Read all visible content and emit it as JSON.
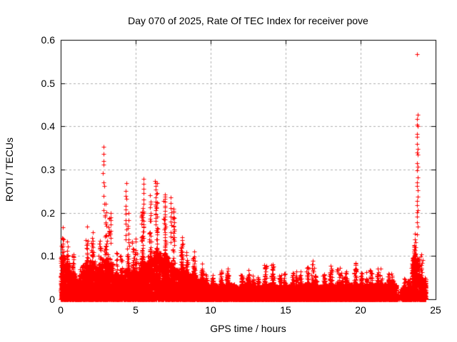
{
  "chart_data": {
    "type": "scatter",
    "title": "Day 070 of 2025, Rate Of TEC Index for receiver pove",
    "xlabel": "GPS time / hours",
    "ylabel": "ROTI / TECUs",
    "xlim": [
      0,
      25
    ],
    "ylim": [
      0,
      0.6
    ],
    "xticks": [
      0,
      5,
      10,
      15,
      20,
      25
    ],
    "yticks": [
      0,
      0.1,
      0.2,
      0.3,
      0.4,
      0.5,
      0.6
    ],
    "grid": true,
    "legend": "none",
    "marker": "plus",
    "colors": {
      "points": "#ff0000",
      "grid": "#b0b0b0",
      "border": "#000000",
      "text": "#000000",
      "background": "#ffffff"
    },
    "series_name": "ROTI",
    "data_time_range": [
      0,
      24.35
    ],
    "envelope_segments": [
      [
        0.0,
        0.3,
        0.1,
        0.17
      ],
      [
        0.3,
        0.6,
        0.085,
        0.135
      ],
      [
        0.6,
        1.0,
        0.06,
        0.11
      ],
      [
        1.0,
        1.4,
        0.045,
        0.075
      ],
      [
        1.4,
        1.9,
        0.08,
        0.17
      ],
      [
        1.9,
        2.3,
        0.09,
        0.165
      ],
      [
        2.3,
        2.7,
        0.075,
        0.145
      ],
      [
        2.7,
        3.1,
        0.095,
        0.23
      ],
      [
        3.1,
        3.5,
        0.085,
        0.2
      ],
      [
        3.5,
        4.2,
        0.055,
        0.115
      ],
      [
        4.2,
        4.6,
        0.07,
        0.2
      ],
      [
        4.6,
        5.2,
        0.065,
        0.15
      ],
      [
        5.2,
        5.8,
        0.085,
        0.22
      ],
      [
        5.8,
        6.2,
        0.1,
        0.25
      ],
      [
        6.2,
        6.7,
        0.11,
        0.27
      ],
      [
        6.7,
        7.2,
        0.1,
        0.24
      ],
      [
        7.2,
        7.6,
        0.085,
        0.22
      ],
      [
        7.6,
        8.2,
        0.07,
        0.155
      ],
      [
        8.2,
        9.0,
        0.06,
        0.115
      ],
      [
        9.0,
        9.6,
        0.045,
        0.085
      ],
      [
        9.6,
        10.4,
        0.035,
        0.06
      ],
      [
        10.4,
        11.0,
        0.032,
        0.068
      ],
      [
        11.0,
        11.6,
        0.035,
        0.072
      ],
      [
        11.6,
        12.2,
        0.03,
        0.058
      ],
      [
        12.2,
        12.7,
        0.035,
        0.068
      ],
      [
        12.7,
        13.4,
        0.03,
        0.058
      ],
      [
        13.4,
        14.3,
        0.035,
        0.085
      ],
      [
        14.3,
        15.2,
        0.03,
        0.06
      ],
      [
        15.2,
        16.2,
        0.032,
        0.065
      ],
      [
        16.2,
        16.9,
        0.035,
        0.09
      ],
      [
        16.9,
        17.8,
        0.03,
        0.062
      ],
      [
        17.8,
        18.6,
        0.035,
        0.078
      ],
      [
        18.6,
        19.3,
        0.035,
        0.07
      ],
      [
        19.3,
        19.8,
        0.035,
        0.09
      ],
      [
        19.8,
        20.6,
        0.032,
        0.066
      ],
      [
        20.6,
        21.6,
        0.035,
        0.072
      ],
      [
        21.6,
        22.4,
        0.035,
        0.06
      ],
      [
        22.4,
        22.78,
        0.01,
        0.025,
        0.18
      ],
      [
        22.78,
        23.4,
        0.028,
        0.05
      ],
      [
        23.4,
        23.95,
        0.095,
        0.16
      ],
      [
        23.95,
        24.35,
        0.05,
        0.11
      ]
    ],
    "spike_streaks": [
      [
        2.86,
        0.2,
        0.365,
        10
      ],
      [
        3.32,
        0.13,
        0.205,
        8
      ],
      [
        4.35,
        0.13,
        0.275,
        12
      ],
      [
        5.52,
        0.14,
        0.29,
        12
      ],
      [
        6.33,
        0.17,
        0.28,
        14
      ],
      [
        6.95,
        0.15,
        0.25,
        10
      ],
      [
        7.35,
        0.13,
        0.24,
        10
      ],
      [
        23.78,
        0.15,
        0.435,
        26
      ]
    ],
    "outliers": [
      [
        23.76,
        0.567
      ]
    ]
  }
}
